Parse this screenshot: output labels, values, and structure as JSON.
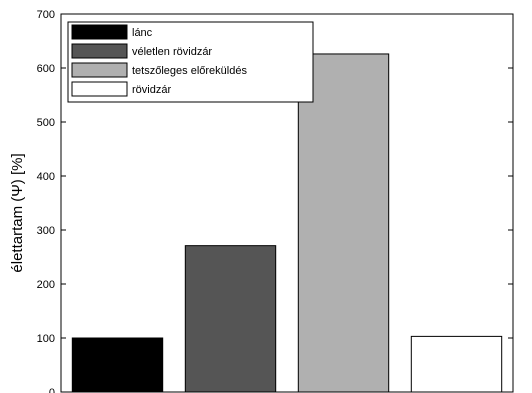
{
  "chart_data": {
    "type": "bar",
    "ylabel": "élettartam (Ψ) [%]",
    "ylim": [
      0,
      700
    ],
    "yticks": [
      0,
      100,
      200,
      300,
      400,
      500,
      600,
      700
    ],
    "grid": false,
    "legend_position": "top-left",
    "series": [
      {
        "name": "lánc",
        "values": [
          100
        ],
        "color": "#000000"
      },
      {
        "name": "véletlen rövidzár",
        "values": [
          271
        ],
        "color": "#555555"
      },
      {
        "name": "tetszőleges előreküldés",
        "values": [
          626
        ],
        "color": "#b0b0b0"
      },
      {
        "name": "rövidzár",
        "values": [
          103
        ],
        "color": "#ffffff"
      }
    ]
  }
}
